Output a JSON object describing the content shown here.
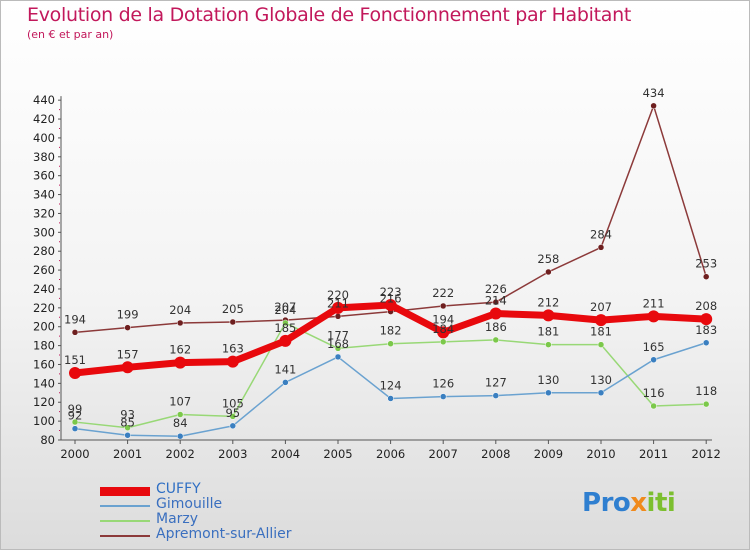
{
  "header": {
    "title": "Evolution de la Dotation Globale de Fonctionnement par Habitant",
    "subtitle": "(en € et par an)"
  },
  "logo": {
    "text": "Proxiti",
    "letters": [
      {
        "ch": "P",
        "color": "#2f7fd0"
      },
      {
        "ch": "r",
        "color": "#2f7fd0"
      },
      {
        "ch": "o",
        "color": "#2f7fd0"
      },
      {
        "ch": "x",
        "color": "#f08a1c"
      },
      {
        "ch": "i",
        "color": "#7cbf2f"
      },
      {
        "ch": "t",
        "color": "#7cbf2f"
      },
      {
        "ch": "i",
        "color": "#7cbf2f"
      }
    ]
  },
  "chart_data": {
    "type": "line",
    "title": "Evolution de la Dotation Globale de Fonctionnement par Habitant",
    "subtitle": "(en € et par an)",
    "xlabel": "",
    "ylabel": "",
    "ylim": [
      80,
      440
    ],
    "ystep": 20,
    "grid": false,
    "legend_position": "bottom-left",
    "categories": [
      "2000",
      "2001",
      "2002",
      "2003",
      "2004",
      "2005",
      "2006",
      "2007",
      "2008",
      "2009",
      "2010",
      "2011",
      "2012"
    ],
    "series": [
      {
        "name": "CUFFY",
        "color": "#e8090d",
        "width": 7,
        "dot": "#e8090d",
        "values": [
          151,
          157,
          162,
          163,
          185,
          220,
          223,
          194,
          214,
          212,
          207,
          211,
          208
        ]
      },
      {
        "name": "Gimouille",
        "color": "#6aa2d0",
        "width": 1.5,
        "dot": "#3a7fc0",
        "values": [
          92,
          85,
          84,
          95,
          141,
          168,
          124,
          126,
          127,
          130,
          130,
          165,
          183
        ]
      },
      {
        "name": "Marzy",
        "color": "#98d876",
        "width": 1.5,
        "dot": "#7bc84a",
        "values": [
          99,
          93,
          107,
          105,
          204,
          177,
          182,
          184,
          186,
          181,
          181,
          116,
          118
        ]
      },
      {
        "name": "Apremont-sur-Allier",
        "color": "#8c3a3a",
        "width": 1.5,
        "dot": "#6e1f1f",
        "values": [
          194,
          199,
          204,
          205,
          207,
          211,
          216,
          222,
          226,
          258,
          284,
          434,
          253
        ]
      }
    ],
    "data_labels": [
      {
        "series": 0,
        "values": [
          151,
          157,
          162,
          163,
          185,
          220,
          223,
          194,
          214,
          212,
          207,
          211,
          208
        ]
      },
      {
        "series": 1,
        "values": [
          92,
          85,
          84,
          95,
          141,
          168,
          124,
          126,
          127,
          130,
          130,
          165,
          183
        ]
      },
      {
        "series": 2,
        "values": [
          99,
          93,
          107,
          105,
          204,
          177,
          182,
          184,
          186,
          181,
          181,
          116,
          118
        ]
      },
      {
        "series": 3,
        "values": [
          194,
          199,
          204,
          205,
          207,
          211,
          216,
          222,
          226,
          258,
          284,
          434,
          253
        ]
      }
    ]
  }
}
